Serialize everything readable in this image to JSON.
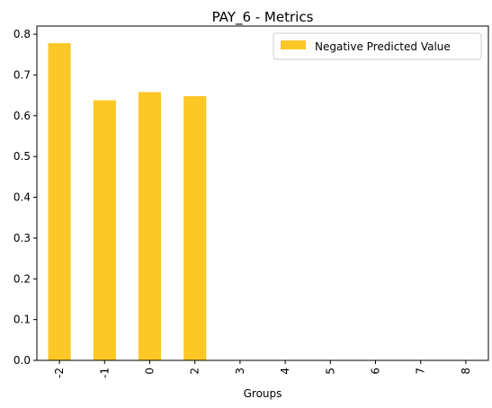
{
  "chart_data": {
    "type": "bar",
    "title": "PAY_6 - Metrics",
    "xlabel": "Groups",
    "ylabel": "",
    "categories": [
      "-2",
      "-1",
      "0",
      "2",
      "3",
      "4",
      "5",
      "6",
      "7",
      "8"
    ],
    "series": [
      {
        "name": "Negative Predicted Value",
        "values": [
          0.778,
          0.638,
          0.658,
          0.648,
          0,
          0,
          0,
          0,
          0,
          0
        ],
        "color": "#fdc726"
      }
    ],
    "ylim": [
      0,
      0.82
    ],
    "yticks": [
      "0.0",
      "0.1",
      "0.2",
      "0.3",
      "0.4",
      "0.5",
      "0.6",
      "0.7",
      "0.8"
    ],
    "grid": false,
    "legend_position": "top-right",
    "xtick_rotation": "vertical"
  }
}
